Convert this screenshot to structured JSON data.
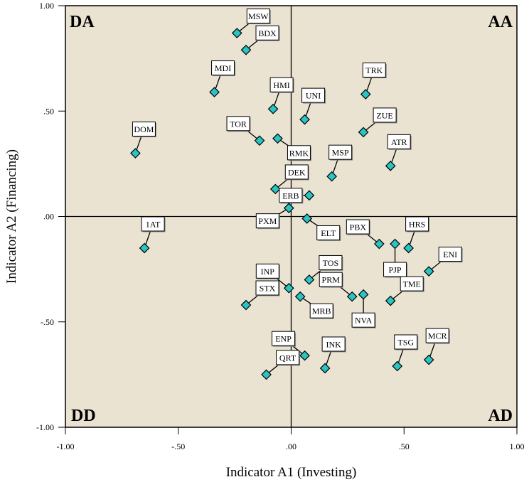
{
  "chart_data": {
    "type": "scatter",
    "title": "",
    "xlabel": "Indicator A1 (Investing)",
    "ylabel": "Indicator A2 (Financing)",
    "xlim": [
      -1.0,
      1.0
    ],
    "ylim": [
      -1.0,
      1.0
    ],
    "xticks": [
      {
        "value": -1.0,
        "label": "-1.00"
      },
      {
        "value": -0.5,
        "label": "-.50"
      },
      {
        "value": 0.0,
        "label": ".00"
      },
      {
        "value": 0.5,
        "label": ".50"
      },
      {
        "value": 1.0,
        "label": "1.00"
      }
    ],
    "yticks": [
      {
        "value": 1.0,
        "label": "1.00"
      },
      {
        "value": 0.5,
        "label": ".50"
      },
      {
        "value": 0.0,
        "label": ".00"
      },
      {
        "value": -0.5,
        "label": "-.50"
      },
      {
        "value": -1.0,
        "label": "-1.00"
      }
    ],
    "grid": false,
    "reference_lines": {
      "x": 0.0,
      "y": 0.0
    },
    "background_color": "#ebe3d1",
    "marker_color": "#29c4c4",
    "marker_shape": "diamond",
    "quadrant_labels": [
      {
        "text": "DA",
        "position": "top-left"
      },
      {
        "text": "AA",
        "position": "top-right"
      },
      {
        "text": "DD",
        "position": "bottom-left"
      },
      {
        "text": "AD",
        "position": "bottom-right"
      }
    ],
    "points": [
      {
        "label": "MSW",
        "x": -0.24,
        "y": 0.87,
        "label_dir": "upper-right"
      },
      {
        "label": "BDX",
        "x": -0.2,
        "y": 0.79,
        "label_dir": "upper-right"
      },
      {
        "label": "MDI",
        "x": -0.34,
        "y": 0.59,
        "label_dir": "up"
      },
      {
        "label": "HMI",
        "x": -0.08,
        "y": 0.51,
        "label_dir": "up"
      },
      {
        "label": "UNI",
        "x": 0.06,
        "y": 0.46,
        "label_dir": "up"
      },
      {
        "label": "TOR",
        "x": -0.14,
        "y": 0.36,
        "label_dir": "upper-left"
      },
      {
        "label": "RMK",
        "x": -0.06,
        "y": 0.37,
        "label_dir": "lower-right"
      },
      {
        "label": "TRK",
        "x": 0.33,
        "y": 0.58,
        "label_dir": "up"
      },
      {
        "label": "ZUE",
        "x": 0.32,
        "y": 0.4,
        "label_dir": "upper-right"
      },
      {
        "label": "ATR",
        "x": 0.44,
        "y": 0.24,
        "label_dir": "up"
      },
      {
        "label": "MSP",
        "x": 0.18,
        "y": 0.19,
        "label_dir": "up"
      },
      {
        "label": "DOM",
        "x": -0.69,
        "y": 0.3,
        "label_dir": "up"
      },
      {
        "label": "DEK",
        "x": -0.07,
        "y": 0.13,
        "label_dir": "upper-right"
      },
      {
        "label": "ERB",
        "x": 0.08,
        "y": 0.1,
        "label_dir": "left"
      },
      {
        "label": "PXM",
        "x": -0.01,
        "y": 0.04,
        "label_dir": "lower-left"
      },
      {
        "label": "ELT",
        "x": 0.07,
        "y": -0.01,
        "label_dir": "lower-right"
      },
      {
        "label": "1AT",
        "x": -0.65,
        "y": -0.15,
        "label_dir": "up"
      },
      {
        "label": "PBX",
        "x": 0.39,
        "y": -0.13,
        "label_dir": "upper-left"
      },
      {
        "label": "PJP",
        "x": 0.46,
        "y": -0.13,
        "label_dir": "down"
      },
      {
        "label": "HRS",
        "x": 0.52,
        "y": -0.15,
        "label_dir": "up"
      },
      {
        "label": "ENI",
        "x": 0.61,
        "y": -0.26,
        "label_dir": "upper-right"
      },
      {
        "label": "TME",
        "x": 0.44,
        "y": -0.4,
        "label_dir": "upper-right"
      },
      {
        "label": "TOS",
        "x": 0.08,
        "y": -0.3,
        "label_dir": "upper-right"
      },
      {
        "label": "INP",
        "x": -0.01,
        "y": -0.34,
        "label_dir": "upper-left"
      },
      {
        "label": "STX",
        "x": -0.2,
        "y": -0.42,
        "label_dir": "upper-right"
      },
      {
        "label": "MRB",
        "x": 0.04,
        "y": -0.38,
        "label_dir": "lower-right"
      },
      {
        "label": "PRM",
        "x": 0.27,
        "y": -0.38,
        "label_dir": "upper-left"
      },
      {
        "label": "NVA",
        "x": 0.32,
        "y": -0.37,
        "label_dir": "down"
      },
      {
        "label": "ENP",
        "x": 0.06,
        "y": -0.66,
        "label_dir": "upper-left"
      },
      {
        "label": "INK",
        "x": 0.15,
        "y": -0.72,
        "label_dir": "up"
      },
      {
        "label": "QRT",
        "x": -0.11,
        "y": -0.75,
        "label_dir": "upper-right"
      },
      {
        "label": "TSG",
        "x": 0.47,
        "y": -0.71,
        "label_dir": "up"
      },
      {
        "label": "MCR",
        "x": 0.61,
        "y": -0.68,
        "label_dir": "up"
      }
    ]
  }
}
